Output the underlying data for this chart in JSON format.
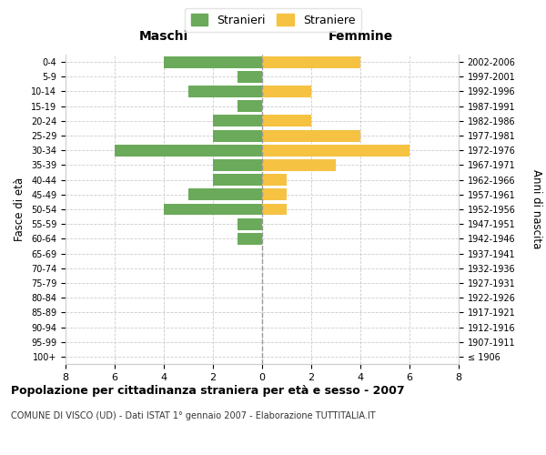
{
  "age_groups": [
    "100+",
    "95-99",
    "90-94",
    "85-89",
    "80-84",
    "75-79",
    "70-74",
    "65-69",
    "60-64",
    "55-59",
    "50-54",
    "45-49",
    "40-44",
    "35-39",
    "30-34",
    "25-29",
    "20-24",
    "15-19",
    "10-14",
    "5-9",
    "0-4"
  ],
  "birth_years": [
    "≤ 1906",
    "1907-1911",
    "1912-1916",
    "1917-1921",
    "1922-1926",
    "1927-1931",
    "1932-1936",
    "1937-1941",
    "1942-1946",
    "1947-1951",
    "1952-1956",
    "1957-1961",
    "1962-1966",
    "1967-1971",
    "1972-1976",
    "1977-1981",
    "1982-1986",
    "1987-1991",
    "1992-1996",
    "1997-2001",
    "2002-2006"
  ],
  "maschi": [
    0,
    0,
    0,
    0,
    0,
    0,
    0,
    0,
    1,
    1,
    4,
    3,
    2,
    2,
    6,
    2,
    2,
    1,
    3,
    1,
    4
  ],
  "femmine": [
    0,
    0,
    0,
    0,
    0,
    0,
    0,
    0,
    0,
    0,
    1,
    1,
    1,
    3,
    6,
    4,
    2,
    0,
    2,
    0,
    4
  ],
  "maschi_color": "#6aaa5a",
  "femmine_color": "#f5c242",
  "title": "Popolazione per cittadinanza straniera per età e sesso - 2007",
  "subtitle": "COMUNE DI VISCO (UD) - Dati ISTAT 1° gennaio 2007 - Elaborazione TUTTITALIA.IT",
  "xlabel_left": "Maschi",
  "xlabel_right": "Femmine",
  "ylabel_left": "Fasce di età",
  "ylabel_right": "Anni di nascita",
  "legend_stranieri": "Stranieri",
  "legend_straniere": "Straniere",
  "xlim": 8,
  "background_color": "#ffffff",
  "grid_color": "#cccccc",
  "bar_height": 0.8
}
